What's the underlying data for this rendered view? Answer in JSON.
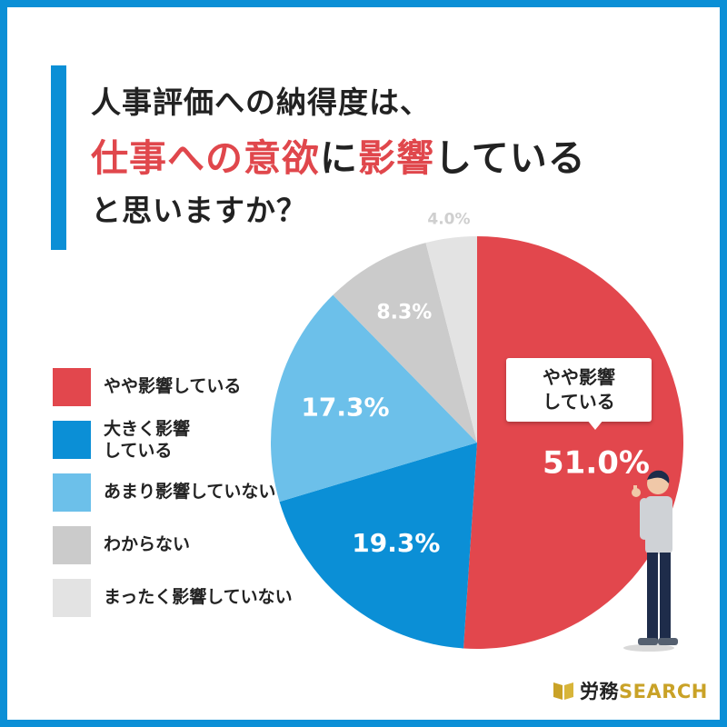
{
  "title": {
    "line1": "人事評価への納得度は、",
    "line2_parts": [
      {
        "text": "仕事への意欲",
        "highlight": true
      },
      {
        "text": "に",
        "highlight": false
      },
      {
        "text": "影響",
        "highlight": true
      },
      {
        "text": "している",
        "highlight": false
      }
    ],
    "line3": "と思いますか？"
  },
  "colors": {
    "frame": "#0b8fd6",
    "highlight": "#e0474c"
  },
  "callout": {
    "text": "やや影響\nしている"
  },
  "brand": {
    "name": "労務",
    "suffix": "SEARCH"
  },
  "chart_data": {
    "type": "pie",
    "title": "",
    "start_angle_deg": 0,
    "direction": "clockwise",
    "slices": [
      {
        "label": "やや影響している",
        "legend_label": "やや影響している",
        "value": 51.0,
        "display_value": "51.0%",
        "color": "#e2474d",
        "text_color": "#ffffff"
      },
      {
        "label": "大きく影響している",
        "legend_label": "大きく影響\nしている",
        "value": 19.3,
        "display_value": "19.3%",
        "color": "#0b8fd6",
        "text_color": "#ffffff"
      },
      {
        "label": "あまり影響していない",
        "legend_label": "あまり影響していない",
        "value": 17.3,
        "display_value": "17.3%",
        "color": "#6cc0ea",
        "text_color": "#ffffff"
      },
      {
        "label": "わからない",
        "legend_label": "わからない",
        "value": 8.3,
        "display_value": "8.3%",
        "color": "#cbcbcb",
        "text_color": "#ffffff"
      },
      {
        "label": "まったく影響していない",
        "legend_label": "まったく影響していない",
        "value": 4.0,
        "display_value": "4.0%",
        "color": "#e3e3e3",
        "text_color": "#ffffff"
      }
    ]
  }
}
